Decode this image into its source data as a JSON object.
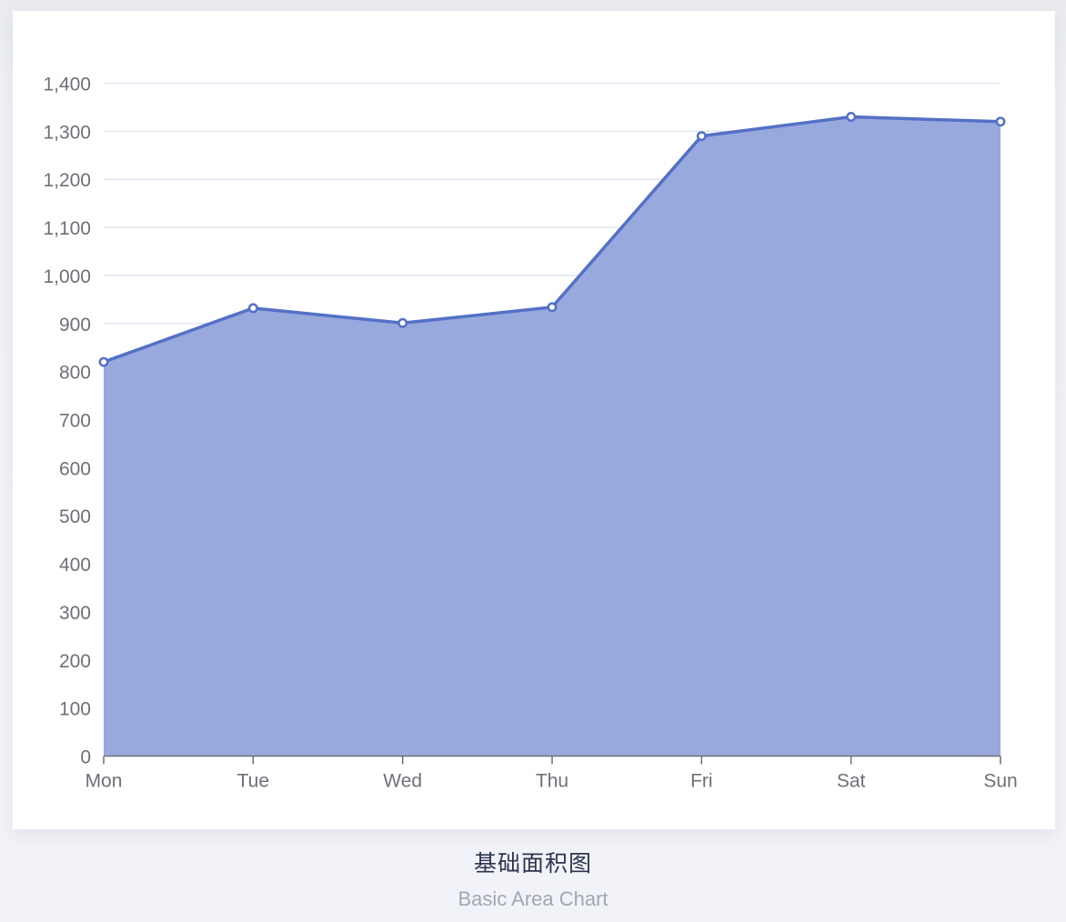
{
  "caption": {
    "title": "基础面积图",
    "subtitle": "Basic Area Chart"
  },
  "colors": {
    "line": "#5470c6",
    "area": "#8fa2db",
    "grid": "#e0e6f1",
    "axis": "#6e7079",
    "label": "#6e7079"
  },
  "chart_data": {
    "type": "area",
    "title": "",
    "xlabel": "",
    "ylabel": "",
    "categories": [
      "Mon",
      "Tue",
      "Wed",
      "Thu",
      "Fri",
      "Sat",
      "Sun"
    ],
    "series": [
      {
        "values": [
          820,
          932,
          901,
          934,
          1290,
          1330,
          1320
        ]
      }
    ],
    "ylim": [
      0,
      1400
    ],
    "yticks": [
      0,
      100,
      200,
      300,
      400,
      500,
      600,
      700,
      800,
      900,
      1000,
      1100,
      1200,
      1300,
      1400
    ],
    "ytick_labels": [
      "0",
      "100",
      "200",
      "300",
      "400",
      "500",
      "600",
      "700",
      "800",
      "900",
      "1,000",
      "1,100",
      "1,200",
      "1,300",
      "1,400"
    ],
    "grid": true,
    "legend": "none"
  }
}
